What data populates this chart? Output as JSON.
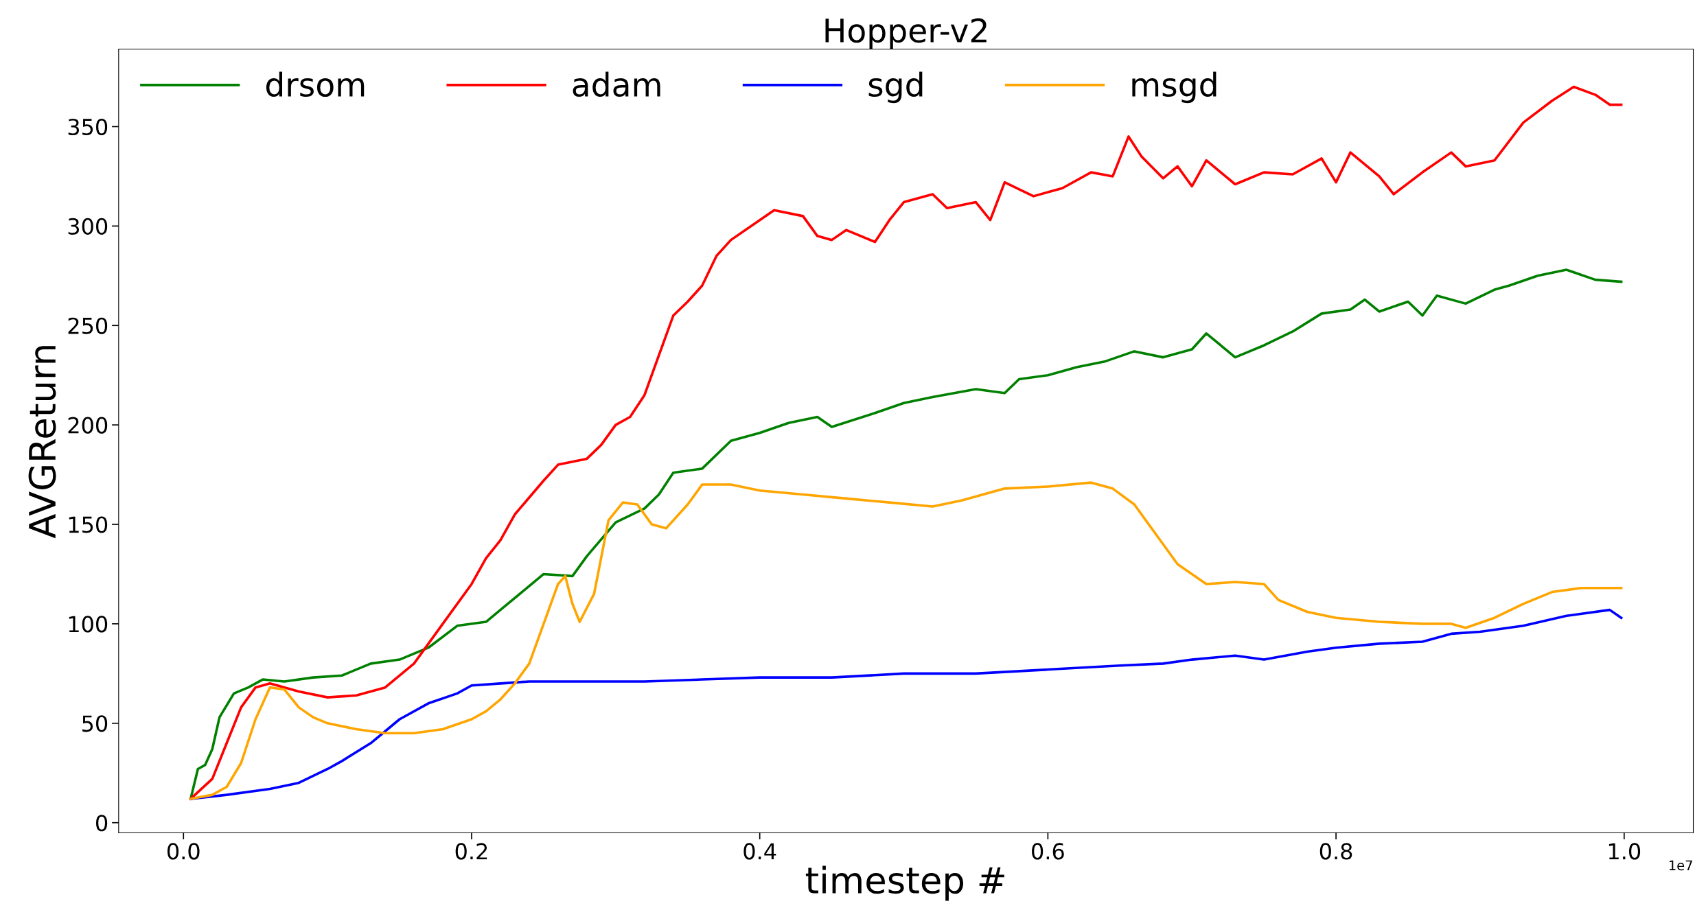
{
  "chart_data": {
    "type": "line",
    "title": "Hopper-v2",
    "xlabel": "timestep #",
    "ylabel": "AVGReturn",
    "annotations": [
      "1e7"
    ],
    "xlim": [
      -0.045,
      1.048
    ],
    "ylim": [
      -5,
      389
    ],
    "xticks": [
      {
        "value": 0,
        "label": "0.0"
      },
      {
        "value": 0.2,
        "label": "0.2"
      },
      {
        "value": 0.4,
        "label": "0.4"
      },
      {
        "value": 0.6,
        "label": "0.6"
      },
      {
        "value": 0.8,
        "label": "0.8"
      },
      {
        "value": 1,
        "label": "1.0"
      }
    ],
    "yticks": [
      0,
      50,
      100,
      150,
      200,
      250,
      300,
      350
    ],
    "grid": false,
    "legend": "top left",
    "line_style": "solid",
    "marker": "none",
    "series": [
      {
        "name": "drsom",
        "color": "#008000",
        "x": [
          0.005,
          0.01,
          0.015,
          0.02,
          0.025,
          0.035,
          0.045,
          0.055,
          0.07,
          0.09,
          0.11,
          0.13,
          0.15,
          0.17,
          0.19,
          0.21,
          0.22,
          0.24,
          0.25,
          0.27,
          0.28,
          0.3,
          0.32,
          0.33,
          0.34,
          0.36,
          0.38,
          0.4,
          0.42,
          0.44,
          0.45,
          0.48,
          0.5,
          0.52,
          0.55,
          0.57,
          0.58,
          0.6,
          0.62,
          0.64,
          0.66,
          0.68,
          0.7,
          0.71,
          0.73,
          0.75,
          0.77,
          0.79,
          0.81,
          0.82,
          0.83,
          0.85,
          0.86,
          0.87,
          0.89,
          0.91,
          0.92,
          0.94,
          0.96,
          0.98,
          0.998
        ],
        "values": [
          12,
          27,
          29,
          37,
          53,
          65,
          68,
          72,
          71,
          73,
          74,
          80,
          82,
          88,
          99,
          101,
          107,
          119,
          125,
          124,
          134,
          151,
          158,
          165,
          176,
          178,
          192,
          196,
          201,
          204,
          199,
          206,
          211,
          214,
          218,
          216,
          223,
          225,
          229,
          232,
          237,
          234,
          238,
          246,
          234,
          240,
          247,
          256,
          258,
          263,
          257,
          262,
          255,
          265,
          261,
          268,
          270,
          275,
          278,
          273,
          272
        ]
      },
      {
        "name": "adam",
        "color": "#ff0000",
        "x": [
          0.005,
          0.02,
          0.03,
          0.04,
          0.05,
          0.06,
          0.08,
          0.1,
          0.12,
          0.14,
          0.16,
          0.18,
          0.2,
          0.21,
          0.22,
          0.23,
          0.25,
          0.26,
          0.28,
          0.29,
          0.3,
          0.31,
          0.32,
          0.33,
          0.34,
          0.35,
          0.36,
          0.37,
          0.38,
          0.4,
          0.41,
          0.43,
          0.44,
          0.45,
          0.46,
          0.48,
          0.49,
          0.5,
          0.52,
          0.53,
          0.55,
          0.56,
          0.57,
          0.59,
          0.61,
          0.63,
          0.645,
          0.656,
          0.665,
          0.68,
          0.69,
          0.7,
          0.71,
          0.73,
          0.75,
          0.77,
          0.79,
          0.8,
          0.81,
          0.83,
          0.84,
          0.86,
          0.88,
          0.89,
          0.91,
          0.93,
          0.95,
          0.965,
          0.98,
          0.99,
          0.998
        ],
        "values": [
          12,
          22,
          40,
          58,
          68,
          70,
          66,
          63,
          64,
          68,
          80,
          100,
          120,
          133,
          142,
          155,
          172,
          180,
          183,
          190,
          200,
          204,
          215,
          235,
          255,
          262,
          270,
          285,
          293,
          303,
          308,
          305,
          295,
          293,
          298,
          292,
          303,
          312,
          316,
          309,
          312,
          303,
          322,
          315,
          319,
          327,
          325,
          345,
          335,
          324,
          330,
          320,
          333,
          321,
          327,
          326,
          334,
          322,
          337,
          325,
          316,
          327,
          337,
          330,
          333,
          352,
          363,
          370,
          366,
          361,
          361
        ]
      },
      {
        "name": "sgd",
        "color": "#0000ff",
        "x": [
          0.005,
          0.03,
          0.06,
          0.08,
          0.1,
          0.11,
          0.13,
          0.15,
          0.17,
          0.19,
          0.2,
          0.22,
          0.24,
          0.28,
          0.32,
          0.36,
          0.4,
          0.45,
          0.5,
          0.55,
          0.6,
          0.65,
          0.68,
          0.7,
          0.73,
          0.75,
          0.78,
          0.8,
          0.83,
          0.86,
          0.88,
          0.9,
          0.93,
          0.96,
          0.99,
          0.998
        ],
        "values": [
          12,
          14,
          17,
          20,
          27,
          31,
          40,
          52,
          60,
          65,
          69,
          70,
          71,
          71,
          71,
          72,
          73,
          73,
          75,
          75,
          77,
          79,
          80,
          82,
          84,
          82,
          86,
          88,
          90,
          91,
          95,
          96,
          99,
          104,
          107,
          103
        ]
      },
      {
        "name": "msgd",
        "color": "#ffa500",
        "x": [
          0.005,
          0.02,
          0.03,
          0.04,
          0.05,
          0.06,
          0.07,
          0.08,
          0.09,
          0.1,
          0.12,
          0.14,
          0.16,
          0.18,
          0.2,
          0.21,
          0.22,
          0.23,
          0.24,
          0.25,
          0.26,
          0.265,
          0.27,
          0.275,
          0.285,
          0.295,
          0.305,
          0.315,
          0.325,
          0.335,
          0.35,
          0.36,
          0.38,
          0.4,
          0.43,
          0.46,
          0.49,
          0.52,
          0.54,
          0.57,
          0.6,
          0.63,
          0.645,
          0.66,
          0.68,
          0.69,
          0.71,
          0.73,
          0.75,
          0.76,
          0.78,
          0.8,
          0.83,
          0.86,
          0.88,
          0.89,
          0.91,
          0.93,
          0.95,
          0.97,
          0.998
        ],
        "values": [
          12,
          14,
          18,
          30,
          52,
          68,
          67,
          58,
          53,
          50,
          47,
          45,
          45,
          47,
          52,
          56,
          62,
          70,
          80,
          100,
          120,
          124,
          110,
          101,
          115,
          152,
          161,
          160,
          150,
          148,
          160,
          170,
          170,
          167,
          165,
          163,
          161,
          159,
          162,
          168,
          169,
          171,
          168,
          160,
          140,
          130,
          120,
          121,
          120,
          112,
          106,
          103,
          101,
          100,
          100,
          98,
          103,
          110,
          116,
          118,
          118
        ]
      }
    ]
  }
}
